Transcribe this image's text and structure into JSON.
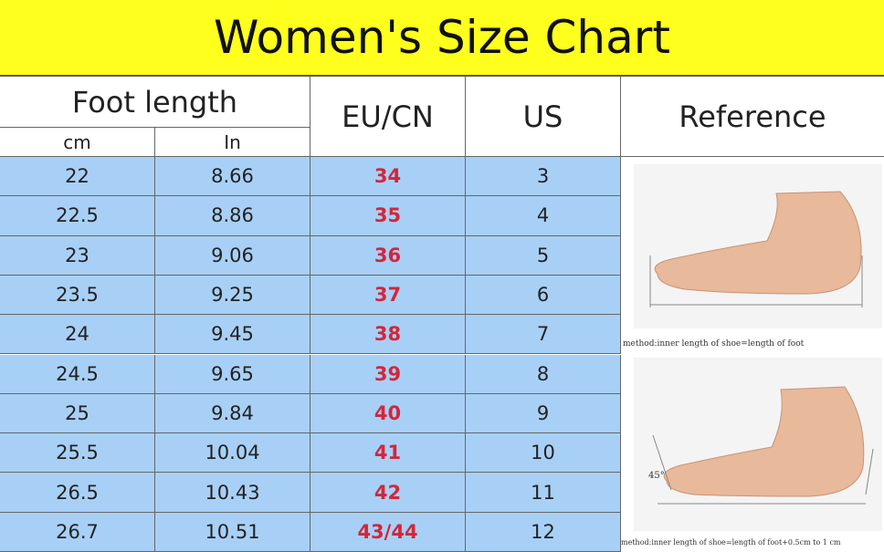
{
  "header": {
    "title": "Women's Size Chart"
  },
  "table": {
    "columns": {
      "foot_length": "Foot length",
      "cm": "cm",
      "in": "In",
      "eu": "EU/CN",
      "us": "US",
      "reference": "Reference"
    },
    "rows": [
      [
        "22",
        "8.66",
        "34",
        "3"
      ],
      [
        "22.5",
        "8.86",
        "35",
        "4"
      ],
      [
        "23",
        "9.06",
        "36",
        "5"
      ],
      [
        "23.5",
        "9.25",
        "37",
        "6"
      ],
      [
        "24",
        "9.45",
        "38",
        "7"
      ],
      [
        "24.5",
        "9.65",
        "39",
        "8"
      ],
      [
        "25",
        "9.84",
        "40",
        "9"
      ],
      [
        "25.5",
        "10.04",
        "41",
        "10"
      ],
      [
        "26.5",
        "10.43",
        "42",
        "11"
      ],
      [
        "26.7",
        "10.51",
        "43/44",
        "12"
      ]
    ]
  },
  "reference": {
    "caption_1": "method:inner length of shoe=length of foot",
    "angle": "45°",
    "caption_2": "method:inner length of shoe=length of foot+0.5cm to 1 cm"
  }
}
